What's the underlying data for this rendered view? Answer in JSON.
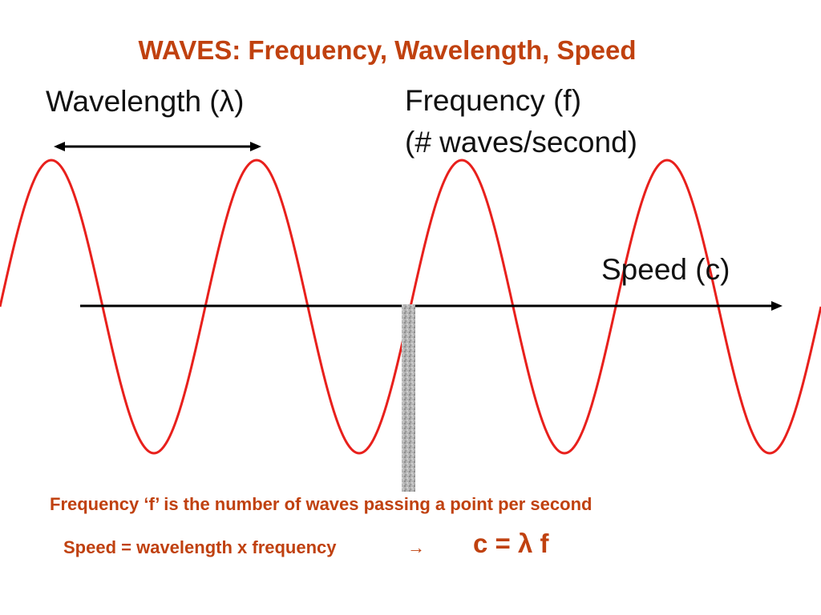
{
  "title": "WAVES: Frequency, Wavelength, Speed",
  "labels": {
    "wavelength": "Wavelength (λ)",
    "frequency_line1": "Frequency (f)",
    "frequency_line2": "(# waves/second)",
    "speed": "Speed (c)"
  },
  "captions": {
    "frequency_definition": "Frequency ‘f’ is the number of waves passing a point per second",
    "speed_definition": "Speed = wavelength x frequency",
    "arrow": "→",
    "equation": "c = λ f"
  },
  "colors": {
    "accent": "#c0410f",
    "wave": "#e8201c",
    "line": "#000000",
    "marker": "#a8a8a8"
  }
}
